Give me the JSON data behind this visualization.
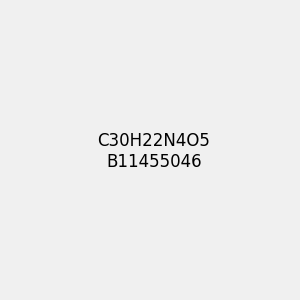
{
  "background_color": "#f0f0f0",
  "bond_color": "#1a1a1a",
  "nitrogen_color": "#2020dd",
  "oxygen_color": "#dd2020",
  "carbon_color": "#1a1a1a",
  "figsize": [
    3.0,
    3.0
  ],
  "dpi": 100
}
